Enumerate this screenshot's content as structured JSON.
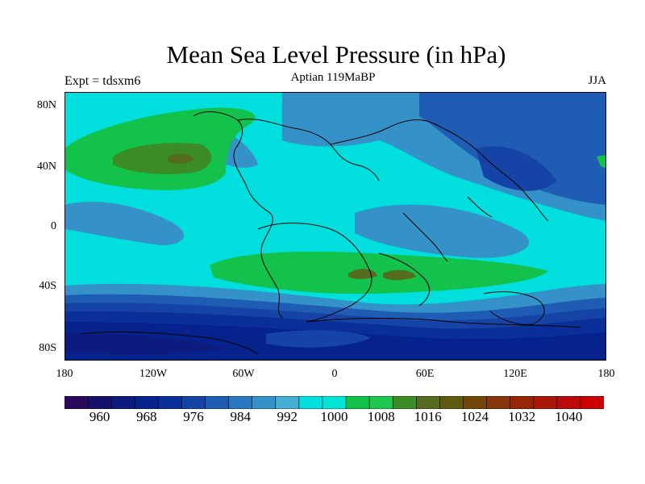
{
  "title": "Mean Sea Level Pressure (in hPa)",
  "subtitle": "Aptian   119MaBP",
  "experiment_label": "Expt = tdsxm6",
  "season_label": "JJA",
  "map": {
    "latitude_labels": [
      "80N",
      "40N",
      "0",
      "40S",
      "80S"
    ],
    "longitude_labels": [
      "180",
      "120W",
      "60W",
      "0",
      "60E",
      "120E",
      "180"
    ]
  },
  "colorbar": {
    "unit": "hPa",
    "colors": [
      "#2b0a5e",
      "#17116e",
      "#0d1a7e",
      "#06228c",
      "#0b2f99",
      "#1544a6",
      "#1e5db3",
      "#2978bf",
      "#3592c9",
      "#45aed3",
      "#00dede",
      "#00e6d6",
      "#12c24a",
      "#1ec850",
      "#3b8c26",
      "#556b1e",
      "#5e5a10",
      "#73460a",
      "#86360a",
      "#972605",
      "#aa1608",
      "#bb0a0a",
      "#cc0000"
    ],
    "tick_labels": [
      "960",
      "968",
      "976",
      "984",
      "992",
      "1000",
      "1008",
      "1016",
      "1024",
      "1032",
      "1040"
    ]
  },
  "colors": {
    "deep_low": "#06228c",
    "low": "#1e5db3",
    "mid_low": "#3592c9",
    "normal": "#00dede",
    "high": "#12c24a",
    "very_high": "#556b1e"
  }
}
